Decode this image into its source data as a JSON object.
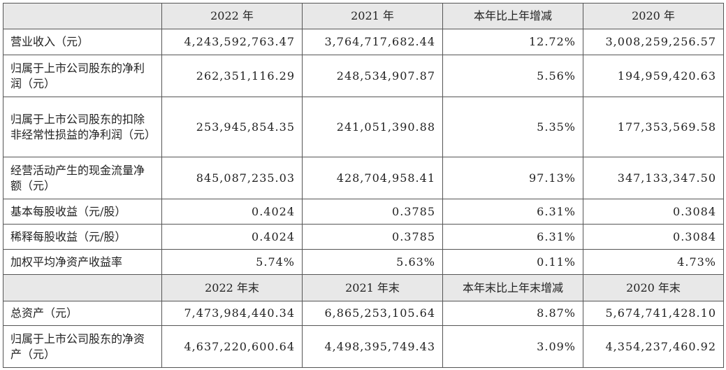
{
  "header1": [
    "2022 年",
    "2021 年",
    "本年比上年增减",
    "2020 年"
  ],
  "rows1": [
    {
      "label": "营业收入（元）",
      "values": [
        "4,243,592,763.47",
        "3,764,717,682.44",
        "12.72%",
        "3,008,259,256.57"
      ]
    },
    {
      "label": "归属于上市公司股东的净利润（元）",
      "values": [
        "262,351,116.29",
        "248,534,907.87",
        "5.56%",
        "194,959,420.63"
      ]
    },
    {
      "label": "归属于上市公司股东的扣除非经常性损益的净利润（元）",
      "values": [
        "253,945,854.35",
        "241,051,390.88",
        "5.35%",
        "177,353,569.58"
      ]
    },
    {
      "label": "经营活动产生的现金流量净额（元）",
      "values": [
        "845,087,235.03",
        "428,704,958.41",
        "97.13%",
        "347,133,347.50"
      ]
    },
    {
      "label": "基本每股收益（元/股）",
      "values": [
        "0.4024",
        "0.3785",
        "6.31%",
        "0.3084"
      ]
    },
    {
      "label": "稀释每股收益（元/股）",
      "values": [
        "0.4024",
        "0.3785",
        "6.31%",
        "0.3084"
      ]
    },
    {
      "label": "加权平均净资产收益率",
      "values": [
        "5.74%",
        "5.63%",
        "0.11%",
        "4.73%"
      ]
    }
  ],
  "header2": [
    "2022 年末",
    "2021 年末",
    "本年末比上年末增减",
    "2020 年末"
  ],
  "rows2": [
    {
      "label": "总资产（元）",
      "values": [
        "7,473,984,440.34",
        "6,865,253,105.64",
        "8.87%",
        "5,674,741,428.10"
      ]
    },
    {
      "label": "归属于上市公司股东的净资产（元）",
      "values": [
        "4,637,220,600.64",
        "4,498,395,749.43",
        "3.09%",
        "4,354,237,460.92"
      ]
    }
  ]
}
